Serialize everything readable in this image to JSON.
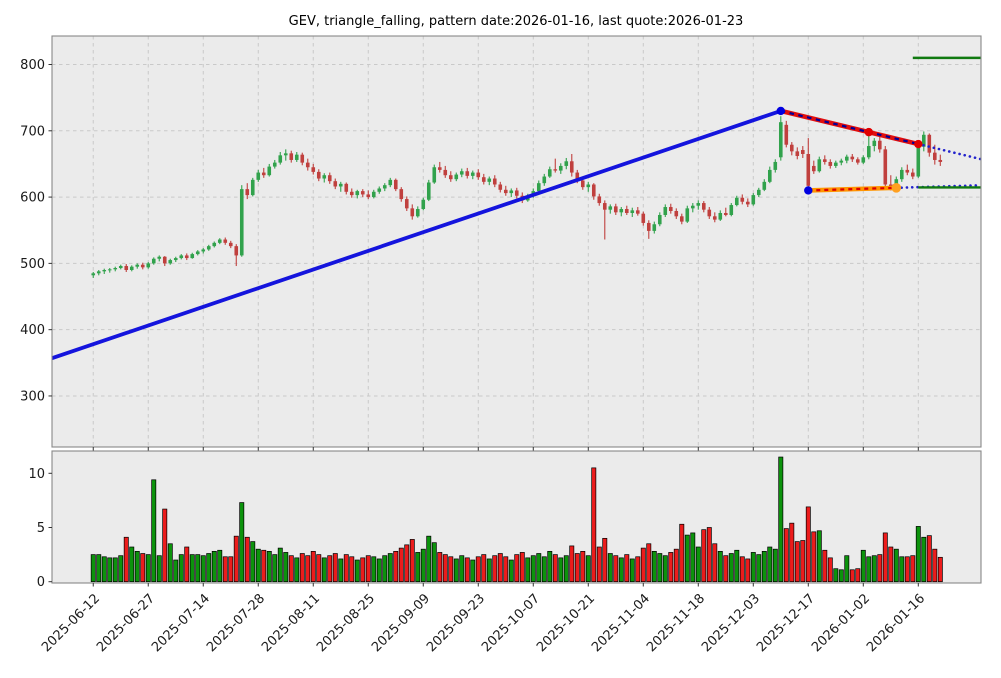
{
  "chart_data": {
    "type": "candlestick",
    "title": "GEV, triangle_falling, pattern date:2026-01-16, last quote:2026-01-23",
    "symbol": "GEV",
    "pattern": "triangle_falling",
    "pattern_date": "2026-01-16",
    "last_quote_date": "2026-01-23",
    "grid": true,
    "legend": false,
    "price_axis": {
      "ticks": [
        300,
        400,
        500,
        600,
        700,
        800
      ],
      "range": [
        223,
        843
      ]
    },
    "volume_axis": {
      "ticks": [
        0,
        5,
        10
      ],
      "range": [
        0,
        12.2
      ]
    },
    "x_ticks": {
      "indices": [
        0,
        10,
        20,
        30,
        40,
        50,
        60,
        70,
        80,
        90,
        100,
        110,
        120,
        130,
        140,
        150
      ],
      "labels": [
        "2025-06-12",
        "2025-06-27",
        "2025-07-14",
        "2025-07-28",
        "2025-08-11",
        "2025-08-25",
        "2025-09-09",
        "2025-09-23",
        "2025-10-07",
        "2025-10-21",
        "2025-11-04",
        "2025-11-18",
        "2025-12-03",
        "2025-12-17",
        "2026-01-02",
        "2026-01-16"
      ]
    },
    "index_range": [
      -7.5,
      161.4
    ],
    "candles": {
      "columns": [
        "open",
        "high",
        "low",
        "close",
        "volume"
      ],
      "rows": [
        [
          482,
          487,
          478,
          485,
          2.5
        ],
        [
          485,
          490,
          482,
          488,
          2.5
        ],
        [
          488,
          492,
          484,
          490,
          2.3
        ],
        [
          490,
          493,
          486,
          491,
          2.2
        ],
        [
          491,
          495,
          488,
          493,
          2.2
        ],
        [
          493,
          498,
          491,
          496,
          2.4
        ],
        [
          496,
          499,
          487,
          490,
          4.1
        ],
        [
          490,
          497,
          488,
          495,
          3.2
        ],
        [
          495,
          500,
          492,
          498,
          2.8
        ],
        [
          498,
          501,
          491,
          494,
          2.6
        ],
        [
          494,
          502,
          492,
          500,
          2.5
        ],
        [
          500,
          509,
          498,
          507,
          9.4
        ],
        [
          507,
          512,
          503,
          510,
          2.4
        ],
        [
          510,
          511,
          496,
          500,
          6.7
        ],
        [
          500,
          507,
          498,
          505,
          3.5
        ],
        [
          505,
          510,
          502,
          508,
          2.0
        ],
        [
          508,
          514,
          506,
          512,
          2.5
        ],
        [
          512,
          515,
          505,
          508,
          3.2
        ],
        [
          508,
          516,
          507,
          514,
          2.5
        ],
        [
          514,
          520,
          512,
          518,
          2.5
        ],
        [
          518,
          523,
          515,
          521,
          2.4
        ],
        [
          521,
          528,
          519,
          526,
          2.6
        ],
        [
          526,
          533,
          524,
          531,
          2.8
        ],
        [
          531,
          538,
          529,
          536,
          2.9
        ],
        [
          536,
          539,
          528,
          531,
          2.3
        ],
        [
          531,
          534,
          523,
          526,
          2.3
        ],
        [
          526,
          529,
          496,
          512,
          4.2
        ],
        [
          512,
          618,
          510,
          612,
          7.3
        ],
        [
          612,
          621,
          597,
          603,
          4.1
        ],
        [
          603,
          629,
          601,
          626,
          3.7
        ],
        [
          626,
          641,
          623,
          637,
          3.0
        ],
        [
          637,
          644,
          629,
          633,
          2.9
        ],
        [
          633,
          650,
          631,
          646,
          2.8
        ],
        [
          646,
          656,
          643,
          652,
          2.5
        ],
        [
          652,
          668,
          649,
          663,
          3.1
        ],
        [
          663,
          672,
          655,
          666,
          2.7
        ],
        [
          666,
          670,
          652,
          656,
          2.4
        ],
        [
          656,
          668,
          653,
          664,
          2.2
        ],
        [
          664,
          667,
          648,
          652,
          2.6
        ],
        [
          652,
          658,
          640,
          645,
          2.4
        ],
        [
          645,
          650,
          634,
          638,
          2.8
        ],
        [
          638,
          642,
          624,
          628,
          2.5
        ],
        [
          628,
          636,
          622,
          633,
          2.2
        ],
        [
          633,
          637,
          620,
          624,
          2.4
        ],
        [
          624,
          628,
          612,
          616,
          2.6
        ],
        [
          616,
          623,
          608,
          620,
          2.1
        ],
        [
          620,
          622,
          604,
          608,
          2.5
        ],
        [
          608,
          613,
          599,
          603,
          2.3
        ],
        [
          603,
          611,
          598,
          609,
          2.0
        ],
        [
          609,
          612,
          600,
          604,
          2.2
        ],
        [
          604,
          610,
          597,
          600,
          2.4
        ],
        [
          600,
          611,
          598,
          608,
          2.3
        ],
        [
          608,
          616,
          605,
          613,
          2.1
        ],
        [
          613,
          621,
          609,
          618,
          2.4
        ],
        [
          618,
          629,
          615,
          626,
          2.6
        ],
        [
          626,
          628,
          609,
          612,
          2.8
        ],
        [
          612,
          615,
          593,
          597,
          3.1
        ],
        [
          597,
          601,
          579,
          583,
          3.4
        ],
        [
          583,
          589,
          566,
          571,
          3.9
        ],
        [
          571,
          586,
          569,
          582,
          2.7
        ],
        [
          582,
          599,
          580,
          596,
          3.0
        ],
        [
          596,
          626,
          594,
          622,
          4.2
        ],
        [
          622,
          649,
          620,
          645,
          3.6
        ],
        [
          645,
          653,
          637,
          641,
          2.7
        ],
        [
          641,
          647,
          629,
          633,
          2.5
        ],
        [
          633,
          639,
          623,
          627,
          2.3
        ],
        [
          627,
          637,
          624,
          634,
          2.1
        ],
        [
          634,
          643,
          630,
          639,
          2.4
        ],
        [
          639,
          644,
          628,
          632,
          2.2
        ],
        [
          632,
          640,
          627,
          637,
          2.0
        ],
        [
          637,
          642,
          626,
          630,
          2.3
        ],
        [
          630,
          635,
          619,
          623,
          2.5
        ],
        [
          623,
          631,
          618,
          628,
          2.1
        ],
        [
          628,
          633,
          615,
          619,
          2.4
        ],
        [
          619,
          623,
          607,
          611,
          2.6
        ],
        [
          611,
          617,
          602,
          606,
          2.3
        ],
        [
          606,
          613,
          600,
          610,
          2.0
        ],
        [
          610,
          614,
          598,
          602,
          2.5
        ],
        [
          602,
          607,
          591,
          595,
          2.7
        ],
        [
          595,
          605,
          593,
          602,
          2.2
        ],
        [
          602,
          613,
          599,
          609,
          2.4
        ],
        [
          609,
          625,
          607,
          621,
          2.6
        ],
        [
          621,
          635,
          617,
          631,
          2.3
        ],
        [
          631,
          646,
          629,
          642,
          2.8
        ],
        [
          642,
          658,
          637,
          640,
          2.5
        ],
        [
          640,
          651,
          635,
          647,
          2.2
        ],
        [
          647,
          659,
          642,
          654,
          2.4
        ],
        [
          654,
          665,
          631,
          637,
          3.3
        ],
        [
          637,
          641,
          621,
          625,
          2.6
        ],
        [
          625,
          629,
          611,
          615,
          2.8
        ],
        [
          615,
          623,
          608,
          619,
          2.4
        ],
        [
          619,
          621,
          596,
          601,
          10.5
        ],
        [
          601,
          605,
          587,
          591,
          3.2
        ],
        [
          591,
          595,
          536,
          581,
          4.0
        ],
        [
          581,
          589,
          575,
          586,
          2.6
        ],
        [
          586,
          590,
          573,
          577,
          2.4
        ],
        [
          577,
          585,
          571,
          582,
          2.2
        ],
        [
          582,
          587,
          573,
          576,
          2.5
        ],
        [
          576,
          584,
          570,
          580,
          2.1
        ],
        [
          580,
          585,
          572,
          575,
          2.3
        ],
        [
          575,
          578,
          557,
          561,
          3.1
        ],
        [
          561,
          565,
          537,
          549,
          3.5
        ],
        [
          549,
          563,
          545,
          559,
          2.8
        ],
        [
          559,
          577,
          556,
          573,
          2.6
        ],
        [
          573,
          589,
          570,
          585,
          2.4
        ],
        [
          585,
          590,
          575,
          579,
          2.7
        ],
        [
          579,
          583,
          567,
          571,
          3.0
        ],
        [
          571,
          575,
          559,
          563,
          5.3
        ],
        [
          563,
          587,
          561,
          583,
          4.3
        ],
        [
          583,
          591,
          577,
          587,
          4.5
        ],
        [
          587,
          595,
          581,
          591,
          3.2
        ],
        [
          591,
          594,
          577,
          581,
          4.8
        ],
        [
          581,
          585,
          567,
          571,
          5.0
        ],
        [
          571,
          577,
          562,
          566,
          3.5
        ],
        [
          566,
          580,
          564,
          576,
          2.8
        ],
        [
          576,
          584,
          571,
          573,
          2.4
        ],
        [
          573,
          591,
          571,
          588,
          2.6
        ],
        [
          588,
          602,
          586,
          599,
          2.9
        ],
        [
          599,
          604,
          589,
          593,
          2.3
        ],
        [
          593,
          598,
          585,
          589,
          2.1
        ],
        [
          589,
          606,
          587,
          603,
          2.7
        ],
        [
          603,
          614,
          600,
          611,
          2.5
        ],
        [
          611,
          627,
          609,
          623,
          2.8
        ],
        [
          623,
          646,
          621,
          641,
          3.2
        ],
        [
          641,
          657,
          637,
          653,
          3.0
        ],
        [
          660,
          722,
          655,
          713,
          11.5
        ],
        [
          709,
          715,
          675,
          679,
          4.9
        ],
        [
          679,
          683,
          663,
          669,
          5.4
        ],
        [
          669,
          675,
          657,
          662,
          3.7
        ],
        [
          671,
          677,
          659,
          665,
          3.8
        ],
        [
          665,
          689,
          609,
          617,
          6.9
        ],
        [
          647,
          655,
          635,
          639,
          4.6
        ],
        [
          639,
          661,
          637,
          657,
          4.7
        ],
        [
          657,
          663,
          649,
          653,
          2.9
        ],
        [
          653,
          657,
          643,
          647,
          2.2
        ],
        [
          647,
          655,
          644,
          652,
          1.2
        ],
        [
          652,
          658,
          648,
          655,
          1.1
        ],
        [
          655,
          664,
          651,
          661,
          2.4
        ],
        [
          661,
          665,
          653,
          657,
          1.1
        ],
        [
          657,
          660,
          649,
          652,
          1.2
        ],
        [
          652,
          663,
          650,
          660,
          2.9
        ],
        [
          660,
          697,
          657,
          677,
          2.3
        ],
        [
          677,
          689,
          669,
          685,
          2.4
        ],
        [
          685,
          691,
          667,
          672,
          2.5
        ],
        [
          672,
          677,
          612,
          619,
          4.5
        ],
        [
          619,
          633,
          610,
          614,
          3.2
        ],
        [
          614,
          631,
          611,
          627,
          3.0
        ],
        [
          627,
          645,
          623,
          641,
          2.3
        ],
        [
          641,
          649,
          633,
          637,
          2.3
        ],
        [
          637,
          643,
          627,
          631,
          2.4
        ],
        [
          631,
          681,
          629,
          676,
          5.1
        ],
        [
          676,
          699,
          669,
          694,
          4.1
        ],
        [
          694,
          696,
          661,
          667,
          4.25
        ],
        [
          667,
          679,
          649,
          656,
          3.0
        ],
        [
          656,
          664,
          647,
          653,
          2.25
        ]
      ]
    },
    "overlays": {
      "trend_line": {
        "from": [
          -7.5,
          357
        ],
        "to": [
          125,
          730
        ],
        "color": "#1414dd"
      },
      "triangle_top": {
        "from": [
          125,
          730
        ],
        "to": [
          150,
          680
        ],
        "color": "#e00e0e",
        "dash_color": "#000099"
      },
      "triangle_top_extension": {
        "from": [
          150,
          680
        ],
        "to": [
          161.4,
          657.2
        ],
        "color": "#2222cc"
      },
      "triangle_bottom": {
        "from": [
          130,
          610
        ],
        "to": [
          146,
          614
        ],
        "color": "#ff9500",
        "dash_color": "#dd0000"
      },
      "triangle_bottom_extension": {
        "from": [
          146,
          614
        ],
        "to": [
          161.4,
          617.8
        ],
        "color": "#2222cc"
      },
      "target_line": {
        "from": [
          149,
          810
        ],
        "to": [
          161.4,
          810
        ],
        "color": "#107a10"
      },
      "base_line": {
        "from": [
          150,
          614.5
        ],
        "to": [
          161.4,
          614.5
        ],
        "color": "#107a10"
      },
      "markers": [
        {
          "at": [
            125,
            730
          ],
          "color": "#0000e0",
          "name": "pattern-peak-marker"
        },
        {
          "at": [
            130,
            610
          ],
          "color": "#0000e0",
          "name": "pattern-low-marker"
        },
        {
          "at": [
            141,
            698
          ],
          "color": "#e00000",
          "name": "triangle-top-touch-marker"
        },
        {
          "at": [
            150,
            680
          ],
          "color": "#e00000",
          "name": "pattern-date-marker"
        },
        {
          "at": [
            146,
            614
          ],
          "color": "#ffa020",
          "name": "triangle-bottom-touch-marker"
        }
      ]
    },
    "colors": {
      "candle_up": "#31a24c",
      "candle_down": "#c0403e",
      "volume_up": "#0c930c",
      "volume_down": "#ec1c1c",
      "volume_edge": "#000000",
      "pane_bg": "#ebebeb",
      "grid": "#c9c9c9",
      "spine": "#888888",
      "tick_text": "#1a1a1a"
    }
  }
}
